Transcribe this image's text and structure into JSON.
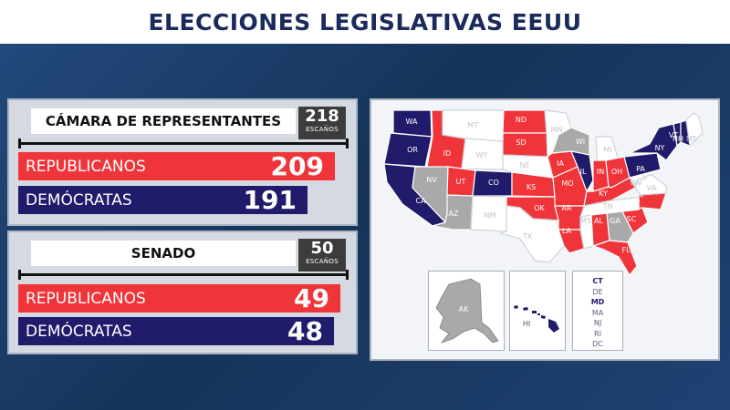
{
  "header": {
    "title": "ELECCIONES LEGISLATIVAS EEUU"
  },
  "house": {
    "title": "CÁMARA DE REPRESENTANTES",
    "seats_needed": "218",
    "seats_label": "ESCAÑOS",
    "republicans": {
      "label": "REPUBLICANOS",
      "count": "209"
    },
    "democrats": {
      "label": "DEMÓCRATAS",
      "count": "191"
    }
  },
  "senate": {
    "title": "SENADO",
    "seats_needed": "50",
    "seats_label": "ESCAÑOS",
    "republicans": {
      "label": "REPUBLICANOS",
      "count": "49"
    },
    "democrats": {
      "label": "DEMÓCRATAS",
      "count": "48"
    }
  },
  "colors": {
    "republican": "#f0353a",
    "democrat": "#211b6b",
    "undecided": "#a9a9a9",
    "no_race": "#ffffff"
  },
  "map": {
    "states": {
      "WA": "D",
      "OR": "D",
      "CA": "D",
      "ID": "R",
      "MT": "N",
      "ND": "R",
      "SD": "R",
      "WY": "N",
      "NV": "U",
      "UT": "R",
      "CO": "D",
      "AZ": "U",
      "NM": "N",
      "NE": "N",
      "KS": "R",
      "OK": "R",
      "TX": "N",
      "MN": "N",
      "IA": "R",
      "MO": "R",
      "AR": "R",
      "LA": "R",
      "WI": "U",
      "MI": "N",
      "IL": "D",
      "IN": "R",
      "OH": "R",
      "KY": "R",
      "TN": "N",
      "MS": "N",
      "AL": "R",
      "GA": "U",
      "FL": "R",
      "SC": "R",
      "NC": "R",
      "VA": "N",
      "WV": "N",
      "PA": "D",
      "NY": "D",
      "VT": "D",
      "NH": "D",
      "ME": "N"
    },
    "insets": {
      "AK": "AK",
      "HI": "HI"
    },
    "small_states": [
      {
        "code": "CT",
        "party": "D"
      },
      {
        "code": "DE",
        "party": "N"
      },
      {
        "code": "MD",
        "party": "D"
      },
      {
        "code": "MA",
        "party": "N"
      },
      {
        "code": "NJ",
        "party": "N"
      },
      {
        "code": "RI",
        "party": "N"
      },
      {
        "code": "DC",
        "party": "N"
      }
    ]
  }
}
